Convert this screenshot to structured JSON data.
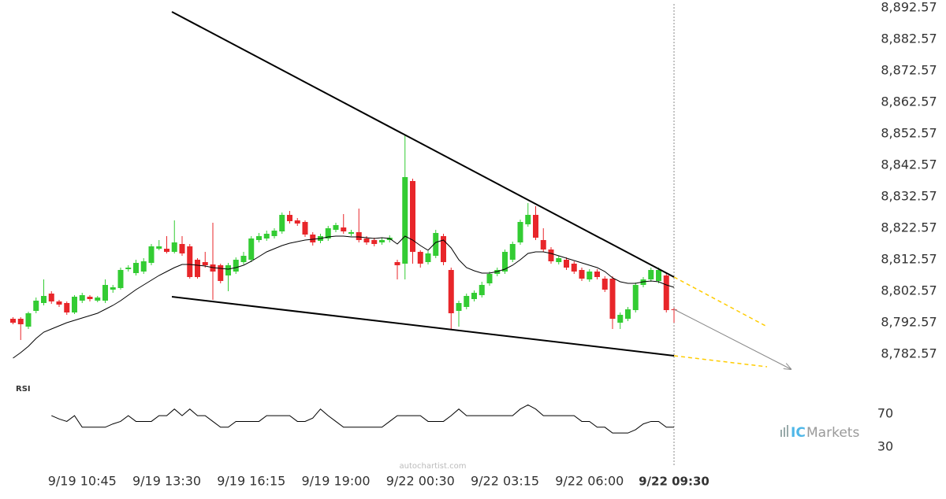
{
  "chart_data": [
    {
      "type": "candlestick",
      "categories": [
        null,
        null,
        null,
        null,
        null,
        null,
        null,
        null,
        null,
        "9/19 10:45",
        null,
        null,
        null,
        null,
        null,
        null,
        null,
        null,
        null,
        null,
        "9/19 13:30",
        null,
        null,
        null,
        null,
        null,
        null,
        null,
        null,
        null,
        null,
        "9/19 16:15",
        null,
        null,
        null,
        null,
        null,
        null,
        null,
        null,
        null,
        null,
        "9/19 19:00",
        null,
        null,
        null,
        null,
        null,
        null,
        null,
        null,
        null,
        null,
        "9/22 00:30",
        null,
        null,
        null,
        null,
        null,
        null,
        null,
        null,
        null,
        null,
        "9/22 03:15",
        null,
        null,
        null,
        null,
        null,
        null,
        null,
        null,
        null,
        null,
        "9/22 06:00",
        null,
        null,
        null,
        null,
        null,
        null,
        null,
        null,
        null,
        null,
        "9/22 09:30"
      ],
      "open": [
        8793.82,
        8793.82,
        8791.32,
        8796.32,
        8798.82,
        8801.82,
        8799.32,
        8798.82,
        8795.82,
        8799.57,
        8800.82,
        8799.57,
        8799.57,
        8803.07,
        8803.57,
        8809.57,
        8808.32,
        8808.82,
        8811.57,
        8816.07,
        8816.07,
        8815.07,
        8817.57,
        8816.82,
        8812.57,
        8811.82,
        8811.07,
        8810.82,
        8807.57,
        8808.82,
        8811.82,
        8812.57,
        8818.82,
        8819.32,
        8820.07,
        8821.57,
        8826.82,
        8825.07,
        8824.57,
        8820.57,
        8818.57,
        8819.32,
        8822.07,
        8822.82,
        8820.82,
        8821.32,
        8819.32,
        8818.82,
        8818.07,
        8818.82,
        8811.82,
        8811.32,
        8837.57,
        8815.07,
        8811.82,
        8813.82,
        8820.07,
        8809.32,
        8796.32,
        8797.57,
        8800.07,
        8801.32,
        8805.07,
        8808.07,
        8808.82,
        8812.57,
        8818.07,
        8823.82,
        8826.82,
        8818.82,
        8815.82,
        8811.82,
        8812.57,
        8811.32,
        8809.32,
        8806.32,
        8808.82,
        8806.57,
        8806.57,
        8792.57,
        8793.82,
        8796.57,
        8804.57,
        8806.32,
        8805.82,
        8807.57,
        8796.82
      ],
      "high": [
        8794.32,
        8794.32,
        8796.07,
        8800.57,
        8806.32,
        8802.57,
        8799.82,
        8799.32,
        8801.32,
        8802.07,
        8801.32,
        8801.07,
        8806.32,
        8804.57,
        8810.07,
        8810.82,
        8812.57,
        8813.07,
        8817.57,
        8818.82,
        8820.07,
        8825.07,
        8820.07,
        8817.57,
        8813.07,
        8815.07,
        8824.32,
        8811.32,
        8811.57,
        8813.32,
        8815.07,
        8820.07,
        8821.07,
        8821.82,
        8822.57,
        8827.57,
        8828.07,
        8825.82,
        8825.07,
        8821.32,
        8820.82,
        8823.32,
        8824.32,
        8827.07,
        8822.07,
        8828.82,
        8820.07,
        8819.57,
        8819.57,
        8820.32,
        8812.57,
        8852.07,
        8838.32,
        8815.57,
        8815.32,
        8822.07,
        8820.82,
        8810.07,
        8799.57,
        8801.82,
        8802.82,
        8805.57,
        8808.82,
        8810.07,
        8815.82,
        8818.32,
        8825.32,
        8830.57,
        8829.57,
        8822.57,
        8816.57,
        8813.82,
        8813.32,
        8812.07,
        8810.07,
        8809.57,
        8809.57,
        8807.32,
        8807.32,
        8795.82,
        8797.57,
        8805.32,
        8807.07,
        8810.07,
        8810.07,
        8808.32,
        8797.32
      ],
      "low": [
        8792.07,
        8787.07,
        8790.57,
        8795.57,
        8798.07,
        8798.57,
        8797.57,
        8795.07,
        8795.32,
        8798.82,
        8799.32,
        8799.07,
        8798.82,
        8802.07,
        8803.07,
        8808.82,
        8807.57,
        8808.07,
        8810.82,
        8815.57,
        8814.57,
        8814.57,
        8813.82,
        8806.57,
        8806.57,
        8810.07,
        8799.82,
        8805.07,
        8802.57,
        8808.07,
        8811.07,
        8811.82,
        8818.07,
        8818.57,
        8819.32,
        8820.82,
        8824.07,
        8823.32,
        8819.82,
        8817.07,
        8817.82,
        8818.57,
        8821.32,
        8820.82,
        8820.07,
        8818.07,
        8817.32,
        8816.82,
        8817.32,
        8818.07,
        8806.32,
        8806.32,
        8811.32,
        8810.07,
        8811.07,
        8813.07,
        8810.82,
        8790.57,
        8791.32,
        8796.82,
        8799.32,
        8800.57,
        8804.32,
        8807.32,
        8808.07,
        8811.82,
        8817.32,
        8823.07,
        8818.82,
        8815.07,
        8811.32,
        8811.07,
        8809.32,
        8808.07,
        8805.82,
        8805.57,
        8806.32,
        8802.32,
        8790.57,
        8790.57,
        8793.07,
        8795.82,
        8803.82,
        8805.57,
        8805.07,
        8795.82,
        8792.57
      ],
      "close": [
        8792.57,
        8792.07,
        8795.57,
        8799.57,
        8801.07,
        8799.32,
        8798.32,
        8795.82,
        8800.82,
        8801.32,
        8800.07,
        8800.57,
        8804.57,
        8803.82,
        8809.32,
        8810.07,
        8811.57,
        8812.07,
        8816.82,
        8816.82,
        8815.07,
        8818.07,
        8814.57,
        8807.07,
        8807.07,
        8810.82,
        8808.82,
        8805.82,
        8810.82,
        8812.57,
        8813.82,
        8819.32,
        8820.07,
        8820.82,
        8821.82,
        8826.82,
        8824.82,
        8824.07,
        8820.57,
        8818.07,
        8820.07,
        8822.57,
        8823.57,
        8821.57,
        8821.32,
        8818.82,
        8818.07,
        8817.57,
        8818.82,
        8819.57,
        8810.82,
        8838.82,
        8815.07,
        8811.32,
        8814.57,
        8821.07,
        8811.82,
        8795.57,
        8798.82,
        8801.07,
        8802.07,
        8804.57,
        8808.07,
        8809.32,
        8815.07,
        8817.57,
        8824.57,
        8826.82,
        8819.57,
        8815.82,
        8812.07,
        8813.07,
        8810.07,
        8808.82,
        8806.57,
        8808.82,
        8807.07,
        8803.07,
        8793.82,
        8795.07,
        8796.82,
        8804.57,
        8806.32,
        8809.32,
        8809.32,
        8796.57,
        8796.57
      ],
      "up_color": "#33cc33",
      "down_color": "#e8262a",
      "ma": {
        "color": "#000000",
        "values": [
          8781.32,
          8783.07,
          8785.07,
          8787.57,
          8789.57,
          8790.57,
          8791.57,
          8792.57,
          8793.32,
          8794.07,
          8794.82,
          8795.57,
          8796.82,
          8798.07,
          8799.57,
          8801.32,
          8803.07,
          8804.57,
          8806.07,
          8807.57,
          8808.82,
          8810.07,
          8811.07,
          8811.07,
          8810.82,
          8810.57,
          8810.07,
          8809.82,
          8809.57,
          8810.07,
          8810.82,
          8812.07,
          8813.57,
          8815.07,
          8816.07,
          8817.07,
          8817.82,
          8818.32,
          8818.82,
          8819.07,
          8819.32,
          8819.82,
          8820.07,
          8820.07,
          8819.82,
          8819.82,
          8819.57,
          8819.32,
          8819.57,
          8819.32,
          8817.57,
          8820.07,
          8818.82,
          8817.07,
          8815.57,
          8818.07,
          8818.82,
          8816.32,
          8812.57,
          8810.07,
          8809.07,
          8808.32,
          8808.32,
          8808.82,
          8809.57,
          8810.82,
          8812.57,
          8814.57,
          8815.07,
          8815.07,
          8814.57,
          8813.82,
          8813.07,
          8812.32,
          8811.57,
          8810.82,
          8810.07,
          8808.82,
          8806.82,
          8805.57,
          8805.07,
          8805.07,
          8805.57,
          8805.82,
          8805.57,
          8804.57,
          8803.82
        ]
      },
      "trend_lines": [
        {
          "color": "#000000",
          "x": [
            20.67,
            86
          ],
          "y": [
            8891.32,
            8807.07
          ]
        },
        {
          "color": "#000000",
          "x": [
            20.67,
            86
          ],
          "y": [
            8800.82,
            8782.07
          ]
        }
      ],
      "projection_lines": [
        {
          "color": "#ffcc00",
          "x": [
            86,
            98.1
          ],
          "y": [
            8807.07,
            8791.32
          ]
        },
        {
          "color": "#ffcc00",
          "x": [
            86,
            98.1
          ],
          "y": [
            8782.07,
            8778.57
          ]
        }
      ],
      "forecast_arrow": {
        "color": "#888888",
        "x": [
          86,
          101.2
        ],
        "y": [
          8796.82,
          8777.82
        ]
      },
      "ylim": [
        8775.07,
        8895.07
      ],
      "yticks": [
        {
          "value": 8892.57,
          "label": "8,892.57"
        },
        {
          "value": 8882.57,
          "label": "8,882.57"
        },
        {
          "value": 8872.57,
          "label": "8,872.57"
        },
        {
          "value": 8862.57,
          "label": "8,862.57"
        },
        {
          "value": 8852.57,
          "label": "8,852.57"
        },
        {
          "value": 8842.57,
          "label": "8,842.57"
        },
        {
          "value": 8832.57,
          "label": "8,832.57"
        },
        {
          "value": 8822.57,
          "label": "8,822.57"
        },
        {
          "value": 8812.57,
          "label": "8,812.57"
        },
        {
          "value": 8802.57,
          "label": "8,802.57"
        },
        {
          "value": 8792.57,
          "label": "8,792.57"
        },
        {
          "value": 8782.57,
          "label": "8,782.57"
        }
      ]
    },
    {
      "type": "line",
      "title": "RSI",
      "color": "#000000",
      "values": [
        null,
        null,
        null,
        null,
        null,
        68,
        64,
        61,
        68,
        54,
        54,
        54,
        54,
        58,
        61,
        68,
        61,
        61,
        61,
        68,
        68,
        76,
        68,
        76,
        68,
        68,
        61,
        54,
        54,
        61,
        61,
        61,
        61,
        68,
        68,
        68,
        68,
        61,
        61,
        65,
        76,
        68,
        61,
        54,
        54,
        54,
        54,
        54,
        54,
        61,
        68,
        68,
        68,
        68,
        61,
        61,
        61,
        68,
        76,
        68,
        68,
        68,
        68,
        68,
        68,
        68,
        76,
        81,
        76,
        68,
        68,
        68,
        68,
        68,
        61,
        61,
        54,
        54,
        47,
        47,
        47,
        51,
        58,
        61,
        61,
        54,
        54
      ],
      "ylim": [
        20,
        90
      ],
      "yticks": [
        70,
        30
      ]
    }
  ],
  "watermark": "autochartist.com",
  "brand": {
    "prefix": "IC",
    "name": "Markets"
  }
}
